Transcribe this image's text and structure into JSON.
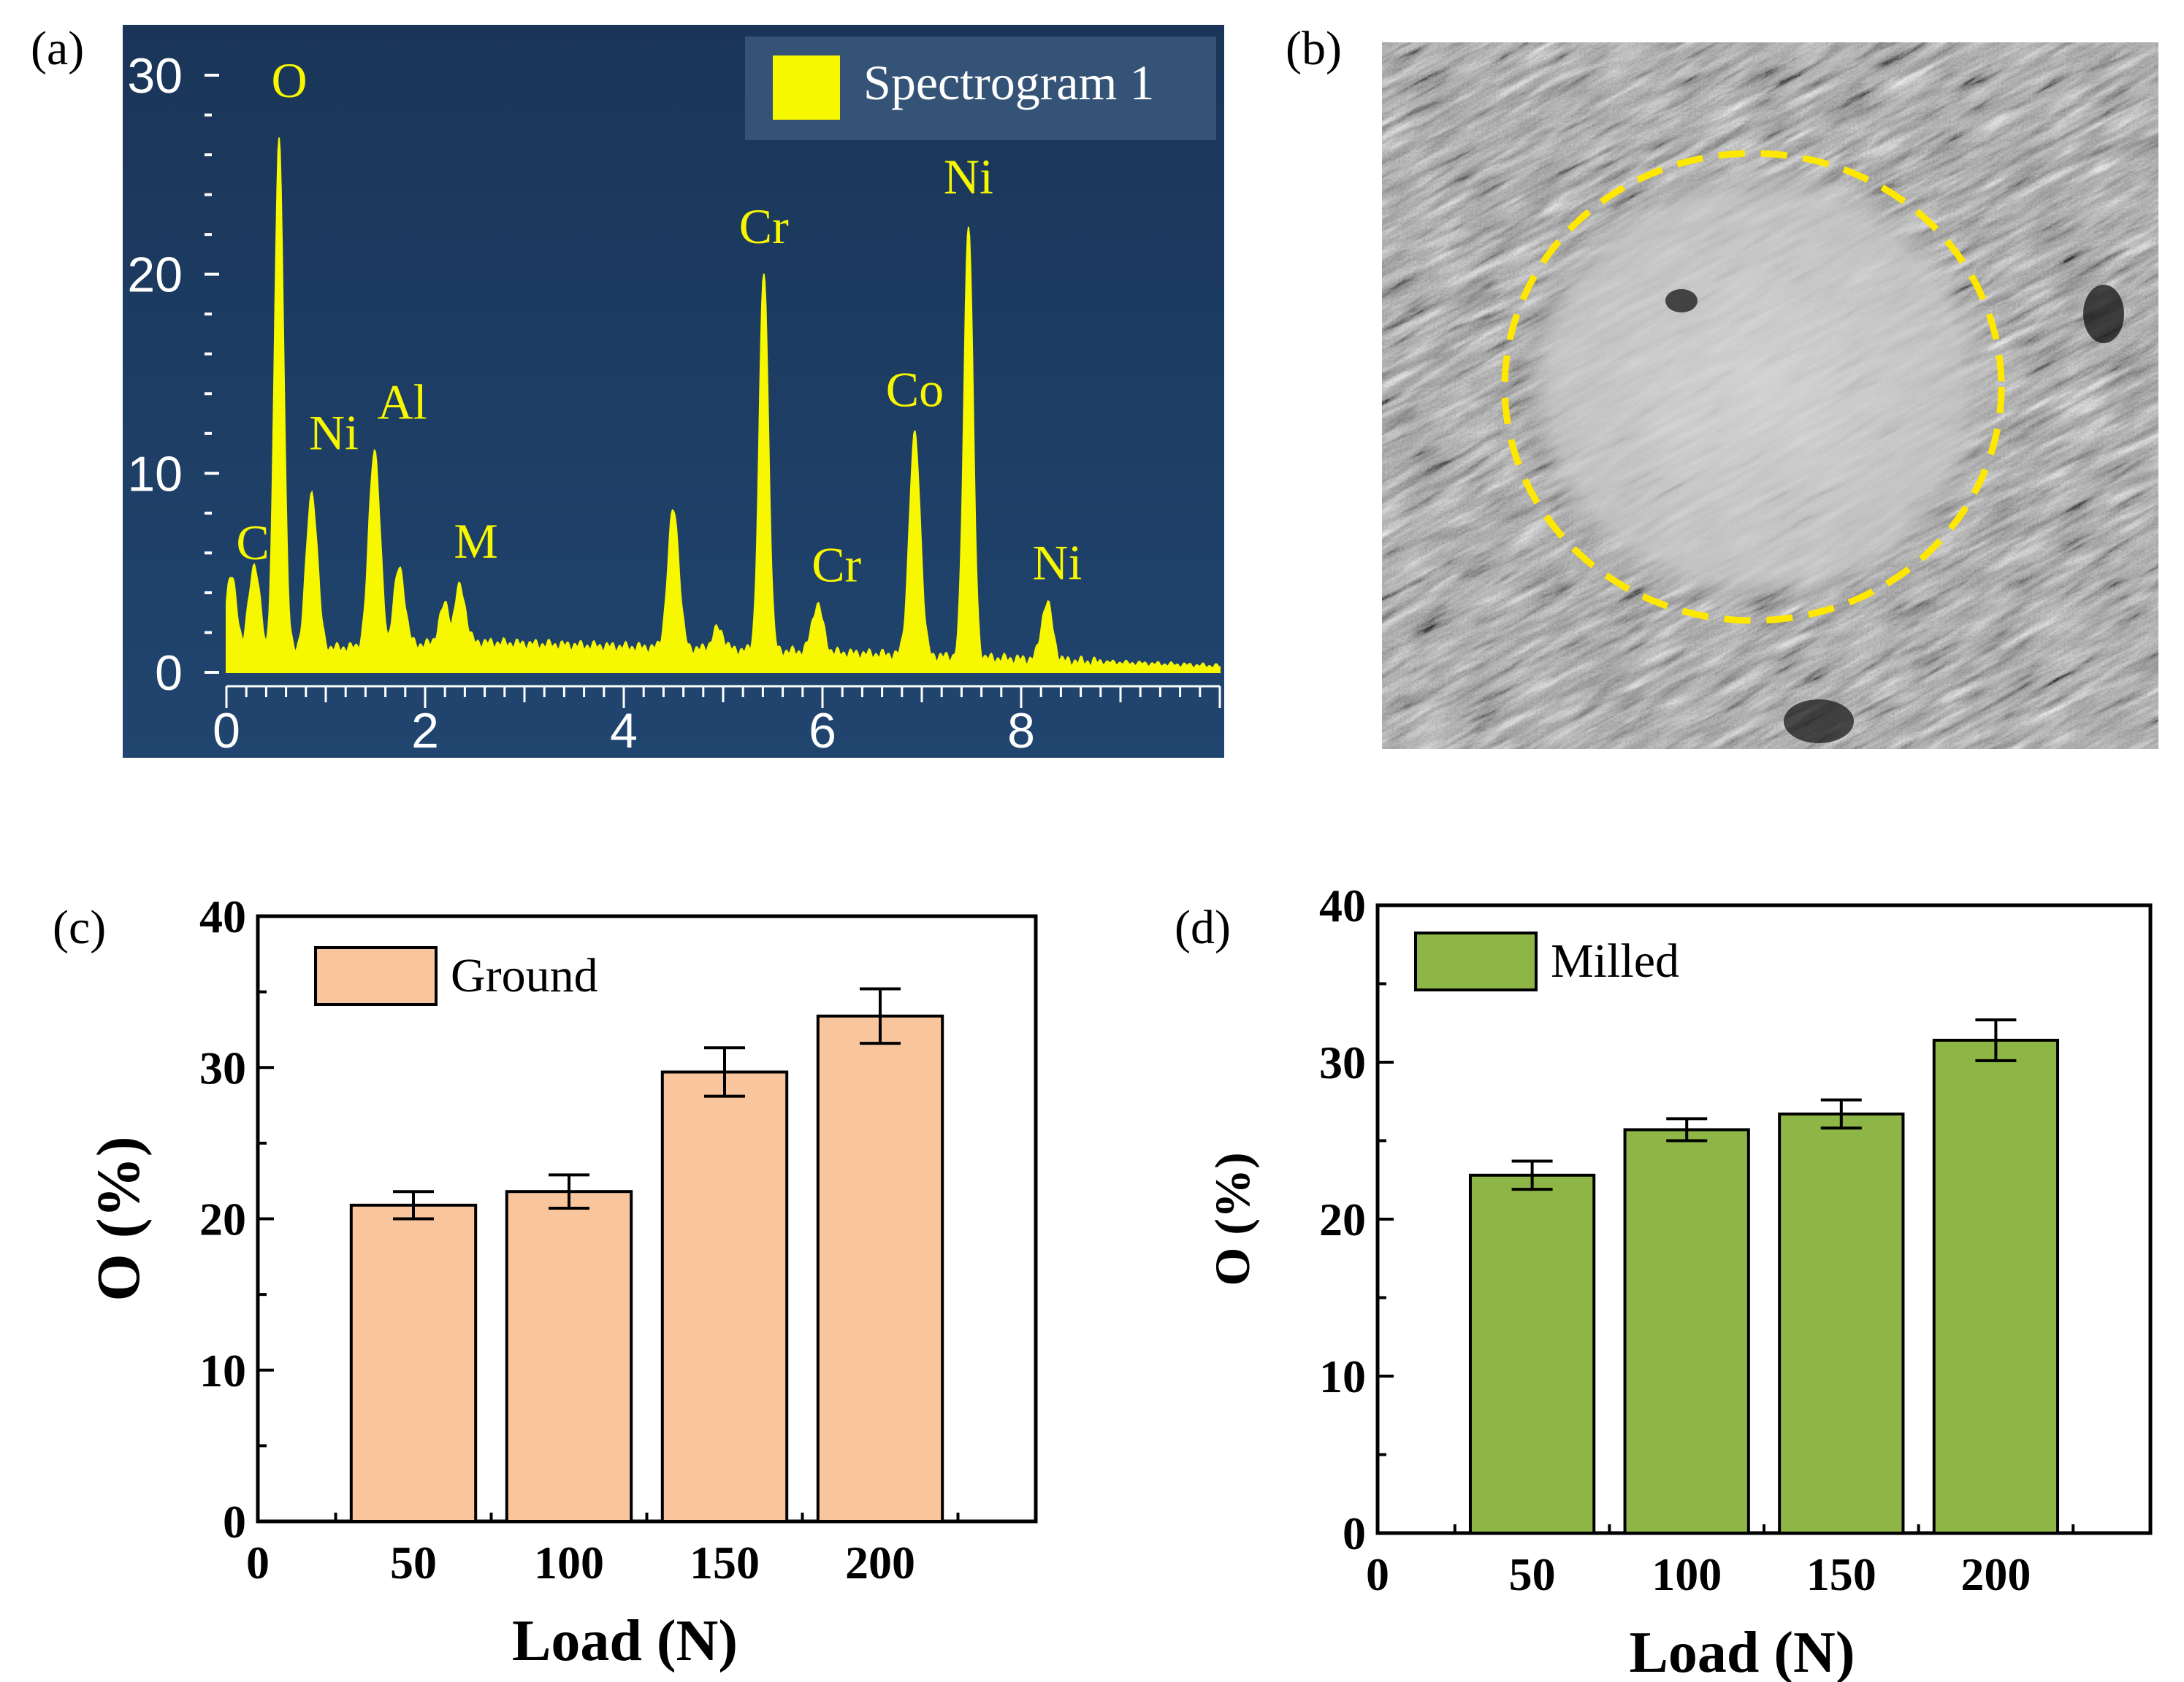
{
  "panels": {
    "a": "(a)",
    "b": "(b)",
    "c": "(c)",
    "d": "(d)"
  },
  "colors": {
    "spectrum_bg": "#1b3a62",
    "spectrum_fill": "#f7f700",
    "spectrum_text": "#ffffff",
    "ground_bar": "#f9c59c",
    "milled_bar": "#8db646",
    "circle": "#ffe800"
  },
  "chart_data": [
    {
      "id": "a",
      "type": "area",
      "title": "",
      "legend": [
        "Spectrogram 1"
      ],
      "legend_position": "top-right",
      "xlabel": "",
      "ylabel": "",
      "xlim": [
        0,
        10
      ],
      "ylim": [
        0,
        30
      ],
      "x_ticks": [
        "0",
        "2",
        "4",
        "6",
        "8"
      ],
      "y_ticks": [
        "0",
        "10",
        "20",
        "30"
      ],
      "baseline_points": [
        [
          0,
          1.0
        ],
        [
          2.5,
          1.5
        ],
        [
          4.5,
          1.2
        ],
        [
          6,
          1.0
        ],
        [
          10,
          0.3
        ]
      ],
      "peaks": [
        {
          "label": "C",
          "x": 0.28,
          "y": 5.4
        },
        {
          "label": "O",
          "x": 0.53,
          "y": 26.7
        },
        {
          "label": "Ni",
          "x": 0.86,
          "y": 9.0
        },
        {
          "label": "Al",
          "x": 1.49,
          "y": 11.2
        },
        {
          "label": "M",
          "x": 2.35,
          "y": 4.3
        },
        {
          "label": "Cr",
          "x": 5.41,
          "y": 20.1
        },
        {
          "label": "Cr",
          "x": 5.95,
          "y": 3.4
        },
        {
          "label": "Co",
          "x": 6.93,
          "y": 11.9
        },
        {
          "label": "Ni",
          "x": 7.47,
          "y": 22.6
        },
        {
          "label": "Ni",
          "x": 8.26,
          "y": 3.5
        }
      ],
      "unlabeled_peaks": [
        {
          "x": 0.05,
          "y": 4.8
        },
        {
          "x": 1.74,
          "y": 5.2
        },
        {
          "x": 2.2,
          "y": 3.4
        },
        {
          "x": 4.5,
          "y": 8.2
        },
        {
          "x": 4.95,
          "y": 2.2
        }
      ]
    },
    {
      "id": "c",
      "type": "bar",
      "title": "",
      "legend": [
        "Ground"
      ],
      "legend_position": "top-left",
      "xlabel": "Load (N)",
      "ylabel": "O (%)",
      "xlim": [
        0,
        250
      ],
      "ylim": [
        0,
        40
      ],
      "x_ticks": [
        "0",
        "50",
        "100",
        "150",
        "200"
      ],
      "y_ticks": [
        "0",
        "10",
        "20",
        "30",
        "40"
      ],
      "categories": [
        "50",
        "100",
        "150",
        "200"
      ],
      "category_x": [
        50,
        100,
        150,
        200
      ],
      "values": [
        20.9,
        21.8,
        29.7,
        33.4
      ],
      "errors": [
        0.9,
        1.1,
        1.6,
        1.8
      ]
    },
    {
      "id": "d",
      "type": "bar",
      "title": "",
      "legend": [
        "Milled"
      ],
      "legend_position": "top-left",
      "xlabel": "Load (N)",
      "ylabel": "O (%)",
      "xlim": [
        0,
        250
      ],
      "ylim": [
        0,
        40
      ],
      "x_ticks": [
        "0",
        "50",
        "100",
        "150",
        "200"
      ],
      "y_ticks": [
        "0",
        "10",
        "20",
        "30",
        "40"
      ],
      "categories": [
        "50",
        "100",
        "150",
        "200"
      ],
      "category_x": [
        50,
        100,
        150,
        200
      ],
      "values": [
        22.8,
        25.7,
        26.7,
        31.4
      ],
      "errors": [
        0.9,
        0.7,
        0.9,
        1.3
      ]
    }
  ]
}
